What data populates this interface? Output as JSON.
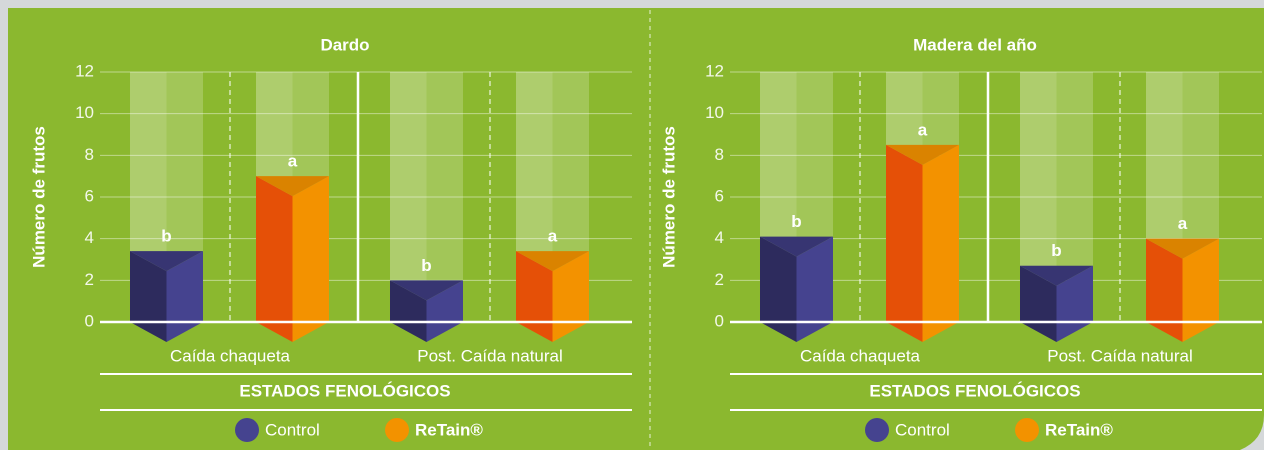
{
  "chart_data": [
    {
      "type": "bar3d",
      "title": "Dardo",
      "ylabel": "Número de frutos",
      "xlabel": "ESTADOS FENOLÓGICOS",
      "categories": [
        "Caída chaqueta",
        "Post. Caída natural"
      ],
      "series": [
        {
          "name": "Control",
          "color": "#45438f",
          "values": [
            3.4,
            2.0
          ],
          "labels": [
            "b",
            "b"
          ]
        },
        {
          "name": "ReTain®",
          "color": "#f39200",
          "values": [
            7.0,
            3.4
          ],
          "labels": [
            "a",
            "a"
          ]
        }
      ],
      "ylim": [
        0,
        12
      ],
      "yticks": [
        0,
        2,
        4,
        6,
        8,
        10,
        12
      ],
      "grid": true
    },
    {
      "type": "bar3d",
      "title": "Madera del año",
      "ylabel": "Número de frutos",
      "xlabel": "ESTADOS FENOLÓGICOS",
      "categories": [
        "Caída chaqueta",
        "Post. Caída natural"
      ],
      "series": [
        {
          "name": "Control",
          "color": "#45438f",
          "values": [
            4.1,
            2.7
          ],
          "labels": [
            "b",
            "b"
          ]
        },
        {
          "name": "ReTain®",
          "color": "#f39200",
          "values": [
            8.5,
            4.0
          ],
          "labels": [
            "a",
            "a"
          ]
        }
      ],
      "ylim": [
        0,
        12
      ],
      "yticks": [
        0,
        2,
        4,
        6,
        8,
        10,
        12
      ],
      "grid": true
    }
  ]
}
